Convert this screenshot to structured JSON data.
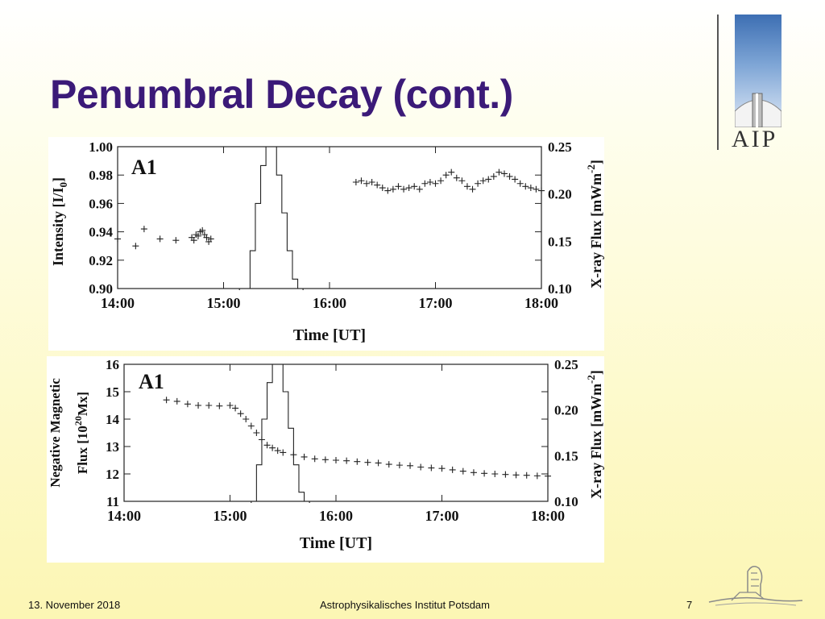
{
  "slide": {
    "title": "Penumbral Decay (cont.)",
    "logo_text": "AIP",
    "footer_date": "13. November 2018",
    "footer_institute": "Astrophysikalisches Institut Potsdam",
    "footer_page": "7"
  },
  "chart_data": [
    {
      "type": "scatter",
      "panel_label": "A1",
      "xlabel": "Time [UT]",
      "xlim": [
        14.0,
        18.0
      ],
      "xticks": [
        "14:00",
        "15:00",
        "16:00",
        "17:00",
        "18:00"
      ],
      "ylabel": "Intensity [I/I0]",
      "ylim": [
        0.9,
        1.0
      ],
      "yticks": [
        "0.90",
        "0.92",
        "0.94",
        "0.96",
        "0.98",
        "1.00"
      ],
      "y2label": "X-ray Flux [mWm-2]",
      "y2lim": [
        0.1,
        0.25
      ],
      "y2ticks": [
        "0.10",
        "0.15",
        "0.20",
        "0.25"
      ],
      "series": [
        {
          "marker": "plus",
          "x": [
            14.0,
            14.17,
            14.25,
            14.4,
            14.55,
            14.7,
            14.72,
            14.74,
            14.76,
            14.78,
            14.8,
            14.82,
            14.84,
            14.86,
            14.88,
            16.25,
            16.3,
            16.35,
            16.4,
            16.45,
            16.5,
            16.55,
            16.6,
            16.65,
            16.7,
            16.75,
            16.8,
            16.85,
            16.9,
            16.95,
            17.0,
            17.05,
            17.1,
            17.15,
            17.2,
            17.25,
            17.3,
            17.35,
            17.4,
            17.45,
            17.5,
            17.55,
            17.6,
            17.65,
            17.7,
            17.75,
            17.8,
            17.85,
            17.9,
            17.95,
            18.0
          ],
          "y": [
            0.935,
            0.93,
            0.942,
            0.935,
            0.934,
            0.936,
            0.934,
            0.938,
            0.937,
            0.94,
            0.941,
            0.938,
            0.936,
            0.933,
            0.935,
            0.975,
            0.976,
            0.974,
            0.975,
            0.973,
            0.971,
            0.969,
            0.97,
            0.972,
            0.97,
            0.971,
            0.972,
            0.97,
            0.974,
            0.975,
            0.974,
            0.976,
            0.98,
            0.982,
            0.978,
            0.976,
            0.972,
            0.97,
            0.974,
            0.976,
            0.977,
            0.979,
            0.982,
            0.981,
            0.979,
            0.977,
            0.974,
            0.972,
            0.971,
            0.97,
            0.969
          ]
        },
        {
          "axis": "right",
          "step": true,
          "x": [
            15.15,
            15.2,
            15.25,
            15.3,
            15.35,
            15.4,
            15.45,
            15.5,
            15.55,
            15.6,
            15.65,
            15.7,
            15.75
          ],
          "y": [
            0.1,
            0.1,
            0.14,
            0.19,
            0.23,
            0.25,
            0.25,
            0.22,
            0.18,
            0.14,
            0.11,
            0.1,
            0.1
          ]
        }
      ]
    },
    {
      "type": "scatter",
      "panel_label": "A1",
      "xlabel": "Time [UT]",
      "xlim": [
        14.0,
        18.0
      ],
      "xticks": [
        "14:00",
        "15:00",
        "16:00",
        "17:00",
        "18:00"
      ],
      "ylabel": "Negative Magnetic Flux [10^20 Mx]",
      "ylabel_line1": "Negative Magnetic",
      "ylabel_line2": "Flux [10",
      "ylabel_sup": "20",
      "ylabel_line2_end": "Mx]",
      "ylim": [
        11,
        16
      ],
      "yticks": [
        "11",
        "12",
        "13",
        "14",
        "15",
        "16"
      ],
      "y2label": "X-ray Flux [mWm-2]",
      "y2lim": [
        0.1,
        0.25
      ],
      "y2ticks": [
        "0.10",
        "0.15",
        "0.20",
        "0.25"
      ],
      "series": [
        {
          "marker": "plus",
          "x": [
            14.4,
            14.5,
            14.6,
            14.7,
            14.8,
            14.9,
            15.0,
            15.05,
            15.1,
            15.15,
            15.2,
            15.25,
            15.3,
            15.35,
            15.4,
            15.45,
            15.5,
            15.6,
            15.7,
            15.8,
            15.9,
            16.0,
            16.1,
            16.2,
            16.3,
            16.4,
            16.5,
            16.6,
            16.7,
            16.8,
            16.9,
            17.0,
            17.1,
            17.2,
            17.3,
            17.4,
            17.5,
            17.6,
            17.7,
            17.8,
            17.9,
            18.0
          ],
          "y": [
            14.7,
            14.65,
            14.55,
            14.5,
            14.5,
            14.48,
            14.5,
            14.4,
            14.2,
            14.0,
            13.75,
            13.5,
            13.25,
            13.05,
            12.95,
            12.85,
            12.78,
            12.7,
            12.62,
            12.55,
            12.52,
            12.5,
            12.48,
            12.45,
            12.42,
            12.4,
            12.35,
            12.32,
            12.3,
            12.25,
            12.22,
            12.2,
            12.15,
            12.1,
            12.05,
            12.02,
            12.0,
            11.98,
            11.96,
            11.95,
            11.93,
            11.92
          ]
        },
        {
          "axis": "right",
          "step": true,
          "x": [
            15.2,
            15.25,
            15.3,
            15.35,
            15.4,
            15.45,
            15.5,
            15.55,
            15.6,
            15.65,
            15.7,
            15.75
          ],
          "y": [
            0.1,
            0.14,
            0.19,
            0.23,
            0.25,
            0.25,
            0.22,
            0.18,
            0.14,
            0.11,
            0.1,
            0.1
          ]
        }
      ]
    }
  ]
}
